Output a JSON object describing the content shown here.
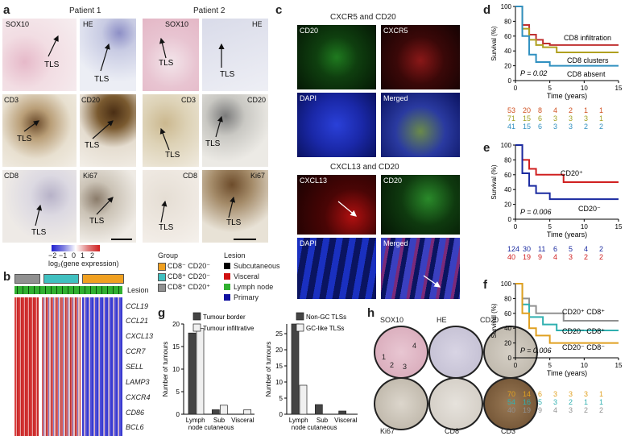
{
  "panel_letters": {
    "a": "a",
    "b": "b",
    "c": "c",
    "d": "d",
    "e": "e",
    "f": "f",
    "g": "g",
    "h": "h"
  },
  "panel_a": {
    "patient1": "Patient 1",
    "patient2": "Patient 2",
    "stains_left": [
      "SOX10",
      "HE",
      "CD3",
      "CD20",
      "CD8",
      "Ki67"
    ],
    "stains_right": [
      "SOX10",
      "HE",
      "CD3",
      "CD20",
      "CD8",
      "Ki67"
    ],
    "tls": "TLS",
    "colorbar_ticks": [
      "−2",
      "−1",
      "0",
      "1",
      "2"
    ],
    "colorbar_label": "log₂(gene expression)"
  },
  "panel_b": {
    "genes": [
      "CCL19",
      "CCL21",
      "CXCL13",
      "CCR7",
      "SELL",
      "LAMP3",
      "CXCR4",
      "CD86",
      "BCL6"
    ],
    "lesion_label": "Lesion",
    "group_title": "Group",
    "groups": [
      {
        "label": "CD8⁻ CD20⁻",
        "color": "#f0a020"
      },
      {
        "label": "CD8⁺ CD20⁻",
        "color": "#40c0c0"
      },
      {
        "label": "CD8⁺ CD20⁺",
        "color": "#909090"
      }
    ],
    "lesion_title": "Lesion",
    "lesions": [
      {
        "label": "Subcutaneous",
        "color": "#000000"
      },
      {
        "label": "Visceral",
        "color": "#d01010"
      },
      {
        "label": "Lymph node",
        "color": "#30b030"
      },
      {
        "label": "Primary",
        "color": "#1010a0"
      }
    ]
  },
  "panel_c": {
    "top_title": "CXCR5 and CD20",
    "top_tiles": [
      "CD20",
      "CXCR5",
      "DAPI",
      "Merged"
    ],
    "bottom_title": "CXCL13 and CD20",
    "bottom_tiles": [
      "CXCL13",
      "CD20",
      "DAPI",
      "Merged"
    ]
  },
  "panel_d": {
    "ylabel": "Survival (%)",
    "xlabel": "Time (years)",
    "yticks": [
      "0",
      "20",
      "40",
      "60",
      "80",
      "100"
    ],
    "xticks": [
      "0",
      "5",
      "10",
      "15"
    ],
    "pvalue": "P = 0.02",
    "curve_labels": [
      "CD8 infiltration",
      "CD8 clusters",
      "CD8 absent"
    ],
    "risk_rows": [
      {
        "color": "#d05020",
        "values": [
          "53",
          "20",
          "8",
          "4",
          "2",
          "1",
          "1"
        ]
      },
      {
        "color": "#a0a020",
        "values": [
          "71",
          "15",
          "6",
          "3",
          "3",
          "3",
          "1"
        ]
      },
      {
        "color": "#3090c0",
        "values": [
          "41",
          "15",
          "6",
          "3",
          "3",
          "2",
          "2"
        ]
      }
    ]
  },
  "panel_e": {
    "ylabel": "Survival (%)",
    "xlabel": "Time (years)",
    "yticks": [
      "0",
      "20",
      "40",
      "60",
      "80",
      "100"
    ],
    "xticks": [
      "0",
      "5",
      "10",
      "15"
    ],
    "pvalue": "P = 0.006",
    "curve_labels": [
      "CD20⁺",
      "CD20⁻"
    ],
    "risk_rows": [
      {
        "color": "#1a2aa0",
        "values": [
          "124",
          "30",
          "11",
          "6",
          "5",
          "4",
          "2"
        ]
      },
      {
        "color": "#d02020",
        "values": [
          "40",
          "19",
          "9",
          "4",
          "3",
          "2",
          "2"
        ]
      }
    ]
  },
  "panel_f": {
    "ylabel": "Survival (%)",
    "xlabel": "Time (years)",
    "yticks": [
      "0",
      "20",
      "40",
      "60",
      "80",
      "100"
    ],
    "xticks": [
      "0",
      "5",
      "10",
      "15"
    ],
    "pvalue": "P = 0.006",
    "curve_labels": [
      "CD20⁺ CD8⁺",
      "CD20⁻ CD8⁺",
      "CD20⁻ CD8⁻"
    ],
    "risk_rows": [
      {
        "color": "#e0a020",
        "values": [
          "70",
          "14",
          "6",
          "3",
          "3",
          "3",
          "1"
        ]
      },
      {
        "color": "#30b0b0",
        "values": [
          "54",
          "16",
          "5",
          "3",
          "2",
          "1",
          "1"
        ]
      },
      {
        "color": "#909090",
        "values": [
          "40",
          "19",
          "9",
          "4",
          "3",
          "2",
          "2"
        ]
      }
    ]
  },
  "panel_g": {
    "ylabel": "Number of tumours",
    "left_legend": [
      "Tumour border",
      "Tumour infiltrative"
    ],
    "right_legend": [
      "Non-GC TLSs",
      "GC-like TLSs"
    ],
    "yticks_left": [
      "0",
      "5",
      "10",
      "15",
      "20"
    ],
    "yticks_right": [
      "0",
      "5",
      "10",
      "15",
      "20",
      "25"
    ]
  },
  "panel_h": {
    "labels": [
      "SOX10",
      "HE",
      "CD20",
      "Ki67",
      "CD8",
      "CD3"
    ],
    "region_numbers": [
      "1",
      "2",
      "3",
      "4"
    ]
  },
  "chart_data": [
    {
      "type": "bar",
      "title": "",
      "ylabel": "Number of tumours",
      "categories": [
        "Lymph node",
        "Sub cutaneous",
        "Visceral"
      ],
      "series": [
        {
          "name": "Tumour border",
          "values": [
            18,
            1,
            0
          ]
        },
        {
          "name": "Tumour infiltrative",
          "values": [
            19,
            2,
            1
          ]
        }
      ],
      "ylim": [
        0,
        20
      ]
    },
    {
      "type": "bar",
      "title": "",
      "ylabel": "Number of tumours",
      "categories": [
        "Lymph node",
        "Sub cutaneous",
        "Visceral"
      ],
      "series": [
        {
          "name": "Non-GC TLSs",
          "values": [
            28,
            3,
            1
          ]
        },
        {
          "name": "GC-like TLSs",
          "values": [
            9,
            0,
            0
          ]
        }
      ],
      "ylim": [
        0,
        28
      ]
    },
    {
      "type": "line",
      "title": "",
      "xlabel": "Time (years)",
      "ylabel": "Survival (%)",
      "xlim": [
        0,
        15
      ],
      "ylim": [
        0,
        100
      ],
      "series": [
        {
          "name": "CD8 infiltration",
          "x": [
            0,
            1,
            2,
            3,
            4,
            5,
            7,
            15
          ],
          "y": [
            100,
            75,
            62,
            55,
            50,
            48,
            48,
            48
          ]
        },
        {
          "name": "CD8 clusters",
          "x": [
            0,
            1,
            2,
            3,
            4,
            6,
            15
          ],
          "y": [
            100,
            70,
            55,
            48,
            45,
            38,
            38
          ]
        },
        {
          "name": "CD8 absent",
          "x": [
            0,
            1,
            2,
            3,
            5,
            15
          ],
          "y": [
            100,
            60,
            35,
            25,
            20,
            20
          ]
        }
      ]
    },
    {
      "type": "line",
      "title": "",
      "xlabel": "Time (years)",
      "ylabel": "Survival (%)",
      "xlim": [
        0,
        15
      ],
      "ylim": [
        0,
        100
      ],
      "series": [
        {
          "name": "CD20⁺",
          "x": [
            0,
            1,
            2,
            3,
            7,
            15
          ],
          "y": [
            100,
            80,
            68,
            60,
            50,
            50
          ]
        },
        {
          "name": "CD20⁻",
          "x": [
            0,
            1,
            2,
            3,
            5,
            15
          ],
          "y": [
            100,
            62,
            45,
            35,
            27,
            27
          ]
        }
      ]
    },
    {
      "type": "line",
      "title": "",
      "xlabel": "Time (years)",
      "ylabel": "Survival (%)",
      "xlim": [
        0,
        15
      ],
      "ylim": [
        0,
        100
      ],
      "series": [
        {
          "name": "CD20⁺ CD8⁺",
          "x": [
            0,
            1,
            2,
            3,
            7,
            15
          ],
          "y": [
            100,
            80,
            70,
            60,
            50,
            50
          ]
        },
        {
          "name": "CD20⁻ CD8⁺",
          "x": [
            0,
            1,
            2,
            4,
            6,
            15
          ],
          "y": [
            100,
            72,
            55,
            45,
            37,
            37
          ]
        },
        {
          "name": "CD20⁻ CD8⁻",
          "x": [
            0,
            1,
            2,
            3,
            5,
            15
          ],
          "y": [
            100,
            60,
            40,
            30,
            20,
            20
          ]
        }
      ]
    }
  ]
}
